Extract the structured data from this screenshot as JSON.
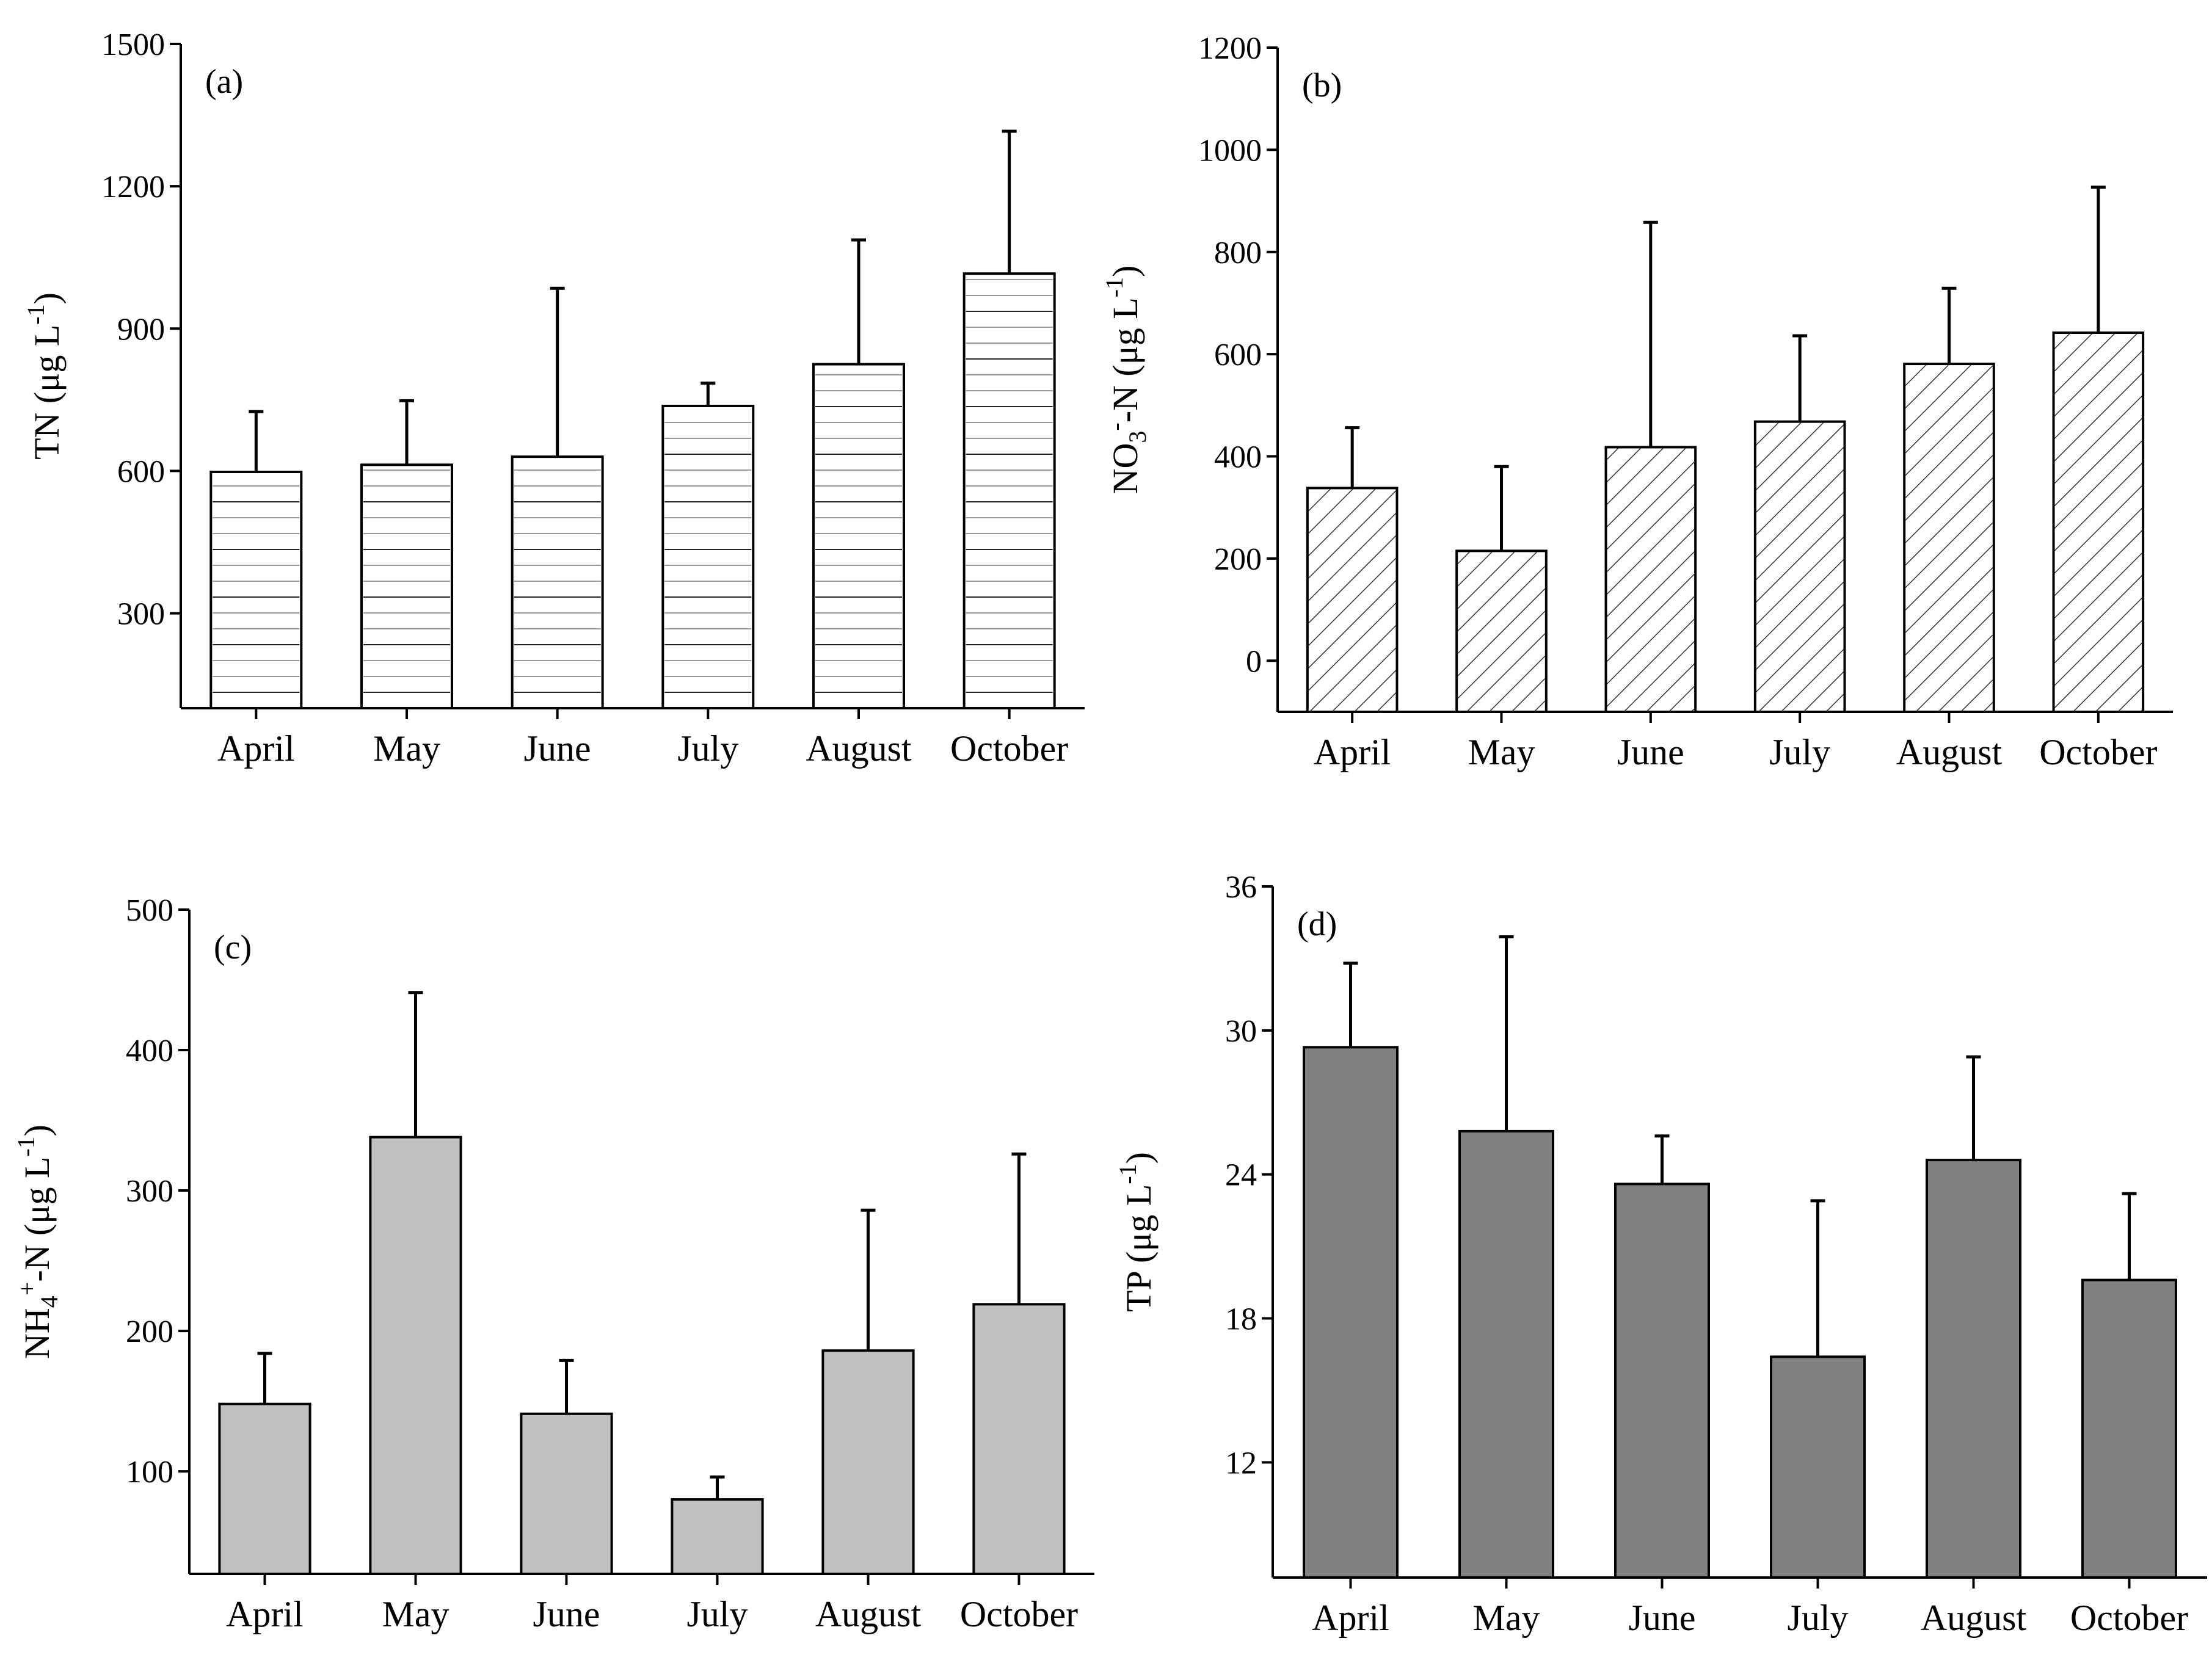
{
  "chart_data": [
    {
      "id": "a",
      "type": "bar",
      "panel_label": "(a)",
      "categories": [
        "April",
        "May",
        "June",
        "July",
        "August",
        "October"
      ],
      "values": [
        598,
        613,
        630,
        737,
        825,
        1016
      ],
      "errors": [
        127,
        135,
        355,
        48,
        262,
        300
      ],
      "ylabel": "TN (μg L-1)",
      "ylabel_parts": {
        "main": "TN (μg L",
        "sup": "-1",
        "close": ")"
      },
      "ylim": [
        100,
        1500
      ],
      "yticks": [
        300,
        600,
        900,
        1200,
        1500
      ],
      "bar_style": "horizontal-lines",
      "bar_color": "#ffffff"
    },
    {
      "id": "b",
      "type": "bar",
      "panel_label": "(b)",
      "categories": [
        "April",
        "May",
        "June",
        "July",
        "August",
        "October"
      ],
      "values": [
        338,
        215,
        418,
        468,
        581,
        642
      ],
      "errors": [
        118,
        165,
        440,
        168,
        148,
        285
      ],
      "ylabel": "NO3--N (μg L-1)",
      "ylabel_parts": {
        "main": "NO",
        "sub": "3",
        "sup1": "-",
        "mid": "-N (μg L",
        "sup": "-1",
        "close": ")"
      },
      "ylim": [
        -100,
        1200
      ],
      "yticks": [
        0,
        200,
        400,
        600,
        800,
        1000,
        1200
      ],
      "bar_style": "diagonal-hatch",
      "bar_color": "#ffffff"
    },
    {
      "id": "c",
      "type": "bar",
      "panel_label": "(c)",
      "categories": [
        "April",
        "May",
        "June",
        "July",
        "August",
        "October"
      ],
      "values": [
        148,
        338,
        141,
        80,
        186,
        219
      ],
      "errors": [
        36,
        103,
        38,
        16,
        100,
        107
      ],
      "ylabel": "NH4+-N (μg L-1)",
      "ylabel_parts": {
        "main": "NH",
        "sub": "4",
        "sup1": "+",
        "mid": "-N (μg L",
        "sup": "-1",
        "close": ")"
      },
      "ylim": [
        27,
        500
      ],
      "yticks": [
        100,
        200,
        300,
        400,
        500
      ],
      "bar_style": "solid",
      "bar_color": "#c0c0c0"
    },
    {
      "id": "d",
      "type": "bar",
      "panel_label": "(d)",
      "categories": [
        "April",
        "May",
        "June",
        "July",
        "August",
        "October"
      ],
      "values": [
        29.3,
        25.8,
        23.6,
        16.4,
        24.6,
        19.6
      ],
      "errors": [
        3.5,
        8.1,
        2.0,
        6.5,
        4.3,
        3.6
      ],
      "ylabel": "TP (μg L-1)",
      "ylabel_parts": {
        "main": "TP (μg L",
        "sup": "-1",
        "close": ")"
      },
      "ylim": [
        7.2,
        36
      ],
      "yticks": [
        12,
        18,
        24,
        30,
        36
      ],
      "bar_style": "solid",
      "bar_color": "#808080"
    }
  ]
}
